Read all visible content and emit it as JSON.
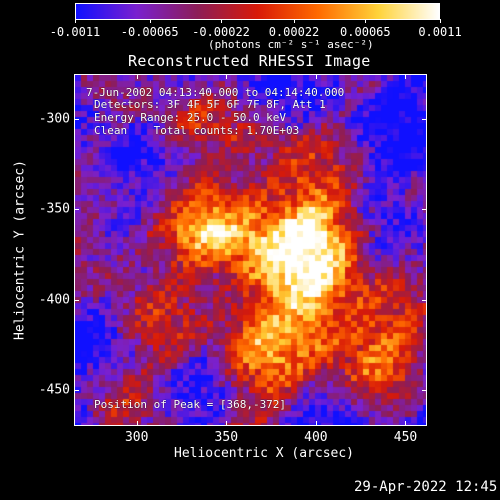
{
  "colorbar": {
    "tick_labels": [
      "-0.0011",
      "-0.00065",
      "-0.00022",
      "0.00022",
      "0.00065",
      "0.0011"
    ],
    "tick_values": [
      -0.0011,
      -0.00065,
      -0.00022,
      0.00022,
      0.00065,
      0.0011
    ],
    "units": "(photons cm⁻² s⁻¹ asec⁻²)",
    "colors": [
      "#1010ff",
      "#7a20cf",
      "#8c1d58",
      "#d81a08",
      "#ff6a00",
      "#ffd33a",
      "#ffffff"
    ]
  },
  "plot": {
    "title": "Reconstructed RHESSI Image",
    "annotations": {
      "time_range": "7-Jun-2002 04:13:40.000 to 04:14:40.000",
      "detectors": "Detectors: 3F 4F 5F 6F 7F 8F, Att 1",
      "energy_range": "Energy Range: 25.0 - 50.0 keV",
      "clean_counts": "Clean    Total counts: 1.70E+03",
      "peak_position": "Position of Peak = [368,-372]"
    },
    "x_axis": {
      "title": "Heliocentric X (arcsec)",
      "tick_labels": [
        "300",
        "350",
        "400",
        "450"
      ],
      "tick_values": [
        300,
        350,
        400,
        450
      ],
      "range": [
        265,
        462
      ]
    },
    "y_axis": {
      "title": "Heliocentric Y (arcsec)",
      "tick_labels": [
        "-300",
        "-350",
        "-400",
        "-450"
      ],
      "tick_values": [
        -300,
        -350,
        -400,
        -450
      ],
      "range": [
        -470,
        -275
      ]
    },
    "peak": {
      "x": 368,
      "y": -372
    }
  },
  "footer": {
    "timestamp": "29-Apr-2022 12:45"
  }
}
